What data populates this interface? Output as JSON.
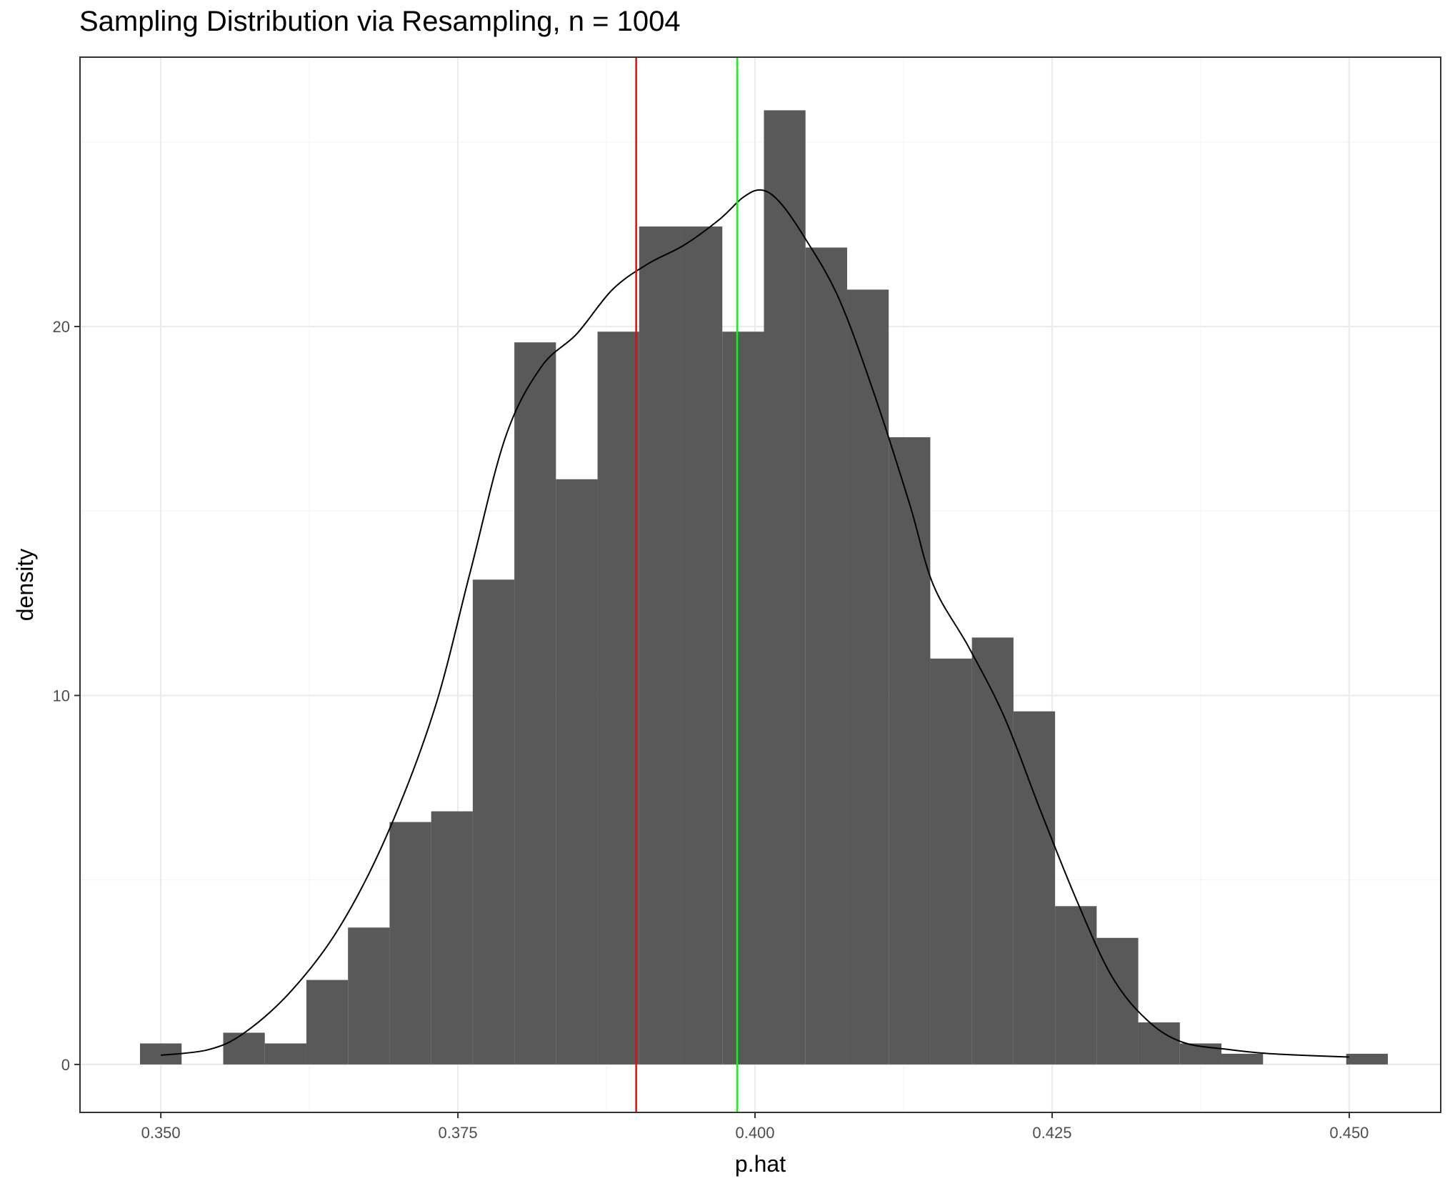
{
  "chart_data": {
    "type": "bar",
    "title": "Sampling Distribution via Resampling, n = 1004",
    "xlabel": "p.hat",
    "ylabel": "density",
    "xlim": [
      0.3432,
      0.4577
    ],
    "ylim": [
      -1.3,
      27.3
    ],
    "x_ticks": [
      0.35,
      0.375,
      0.4,
      0.425,
      0.45
    ],
    "x_tick_labels": [
      "0.350",
      "0.375",
      "0.400",
      "0.425",
      "0.450"
    ],
    "y_ticks": [
      0,
      10,
      20
    ],
    "y_tick_labels": [
      "0",
      "10",
      "20"
    ],
    "grid": true,
    "legend": "none",
    "bin_width": 0.0035,
    "bins": [
      {
        "x": 0.35,
        "density": 0.57
      },
      {
        "x": 0.3535,
        "density": 0
      },
      {
        "x": 0.357,
        "density": 0.86
      },
      {
        "x": 0.3605,
        "density": 0.57
      },
      {
        "x": 0.364,
        "density": 2.29
      },
      {
        "x": 0.3675,
        "density": 3.71
      },
      {
        "x": 0.371,
        "density": 6.57
      },
      {
        "x": 0.3745,
        "density": 6.86
      },
      {
        "x": 0.378,
        "density": 13.14
      },
      {
        "x": 0.3815,
        "density": 19.57
      },
      {
        "x": 0.385,
        "density": 15.86
      },
      {
        "x": 0.3885,
        "density": 19.86
      },
      {
        "x": 0.392,
        "density": 22.71
      },
      {
        "x": 0.3955,
        "density": 22.71
      },
      {
        "x": 0.399,
        "density": 19.86
      },
      {
        "x": 0.4025,
        "density": 25.86
      },
      {
        "x": 0.406,
        "density": 22.14
      },
      {
        "x": 0.4095,
        "density": 21.0
      },
      {
        "x": 0.413,
        "density": 17.0
      },
      {
        "x": 0.4165,
        "density": 11.0
      },
      {
        "x": 0.42,
        "density": 11.57
      },
      {
        "x": 0.4235,
        "density": 9.57
      },
      {
        "x": 0.427,
        "density": 4.29
      },
      {
        "x": 0.4305,
        "density": 3.43
      },
      {
        "x": 0.434,
        "density": 1.14
      },
      {
        "x": 0.4375,
        "density": 0.57
      },
      {
        "x": 0.441,
        "density": 0.29
      },
      {
        "x": 0.4445,
        "density": 0
      },
      {
        "x": 0.448,
        "density": 0
      },
      {
        "x": 0.4515,
        "density": 0.29
      }
    ],
    "density_curve": {
      "color": "#000000",
      "x": [
        0.35,
        0.354,
        0.357,
        0.361,
        0.365,
        0.369,
        0.373,
        0.376,
        0.379,
        0.382,
        0.385,
        0.388,
        0.391,
        0.394,
        0.397,
        0.399,
        0.4005,
        0.402,
        0.404,
        0.407,
        0.41,
        0.413,
        0.415,
        0.418,
        0.421,
        0.424,
        0.427,
        0.43,
        0.433,
        0.436,
        0.44,
        0.443,
        0.446,
        0.45
      ],
      "y": [
        0.25,
        0.4,
        0.85,
        2.0,
        3.7,
        6.2,
        9.6,
        13.3,
        17.0,
        18.9,
        19.8,
        21.0,
        21.7,
        22.2,
        22.9,
        23.5,
        23.7,
        23.4,
        22.5,
        20.8,
        18.2,
        15.2,
        13.0,
        11.3,
        9.4,
        6.9,
        4.5,
        2.4,
        1.2,
        0.6,
        0.4,
        0.3,
        0.25,
        0.2
      ]
    },
    "vlines": [
      {
        "x": 0.39,
        "color": "#ff0000"
      },
      {
        "x": 0.3985,
        "color": "#00ff00"
      }
    ],
    "colors": {
      "bar_fill": "#595959",
      "panel_border": "#333333",
      "grid_major": "#ebebeb",
      "grid_minor": "#f5f5f5"
    }
  }
}
